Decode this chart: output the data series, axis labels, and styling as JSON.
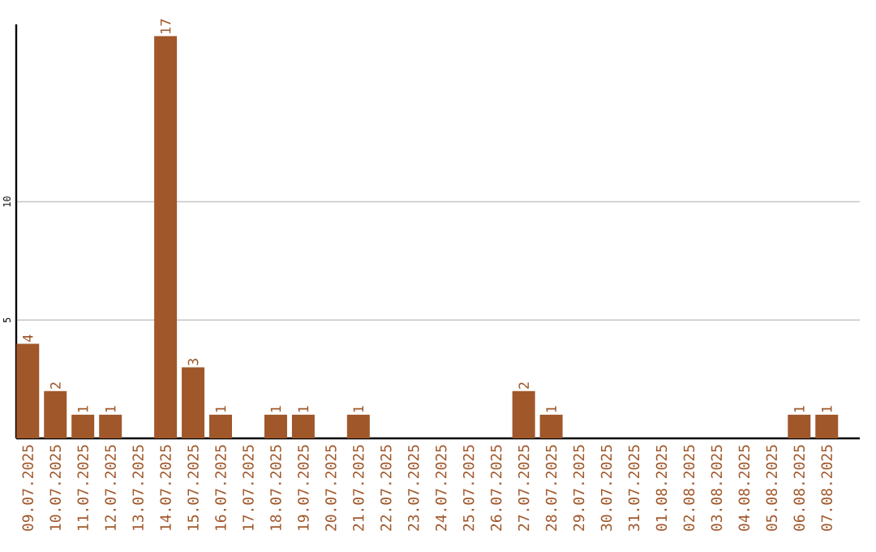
{
  "chart_data": {
    "type": "bar",
    "categories": [
      "09.07.2025",
      "10.07.2025",
      "11.07.2025",
      "12.07.2025",
      "13.07.2025",
      "14.07.2025",
      "15.07.2025",
      "16.07.2025",
      "17.07.2025",
      "18.07.2025",
      "19.07.2025",
      "20.07.2025",
      "21.07.2025",
      "22.07.2025",
      "23.07.2025",
      "24.07.2025",
      "25.07.2025",
      "26.07.2025",
      "27.07.2025",
      "28.07.2025",
      "29.07.2025",
      "30.07.2025",
      "31.07.2025",
      "01.08.2025",
      "02.08.2025",
      "03.08.2025",
      "04.08.2025",
      "05.08.2025",
      "06.08.2025",
      "07.08.2025"
    ],
    "values": [
      4,
      2,
      1,
      1,
      0,
      17,
      3,
      1,
      0,
      1,
      1,
      0,
      1,
      0,
      0,
      0,
      0,
      0,
      2,
      1,
      0,
      0,
      0,
      0,
      0,
      0,
      0,
      0,
      1,
      1
    ],
    "value_labels": [
      "4",
      "2",
      "1",
      "1",
      null,
      "17",
      "3",
      "1",
      null,
      "1",
      "1",
      null,
      "1",
      null,
      null,
      null,
      null,
      null,
      "2",
      "1",
      null,
      null,
      null,
      null,
      null,
      null,
      null,
      null,
      "1",
      "1"
    ],
    "color": "#a0572a",
    "ylim": [
      0,
      17.5
    ],
    "yticks": [
      5,
      10
    ],
    "grid": "y"
  }
}
